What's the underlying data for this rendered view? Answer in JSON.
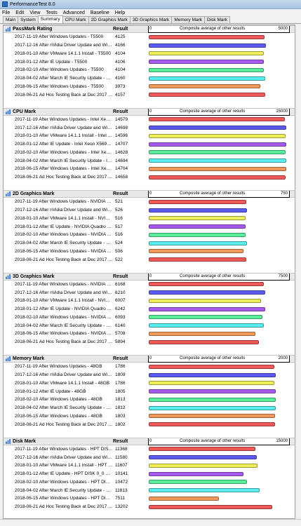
{
  "window": {
    "title": "PerformanceTest 8.0"
  },
  "menu": [
    "File",
    "Edit",
    "View",
    "Tests",
    "Advanced",
    "Baseline",
    "Help"
  ],
  "tabs": [
    {
      "label": "Main",
      "active": false
    },
    {
      "label": "System",
      "active": false
    },
    {
      "label": "Summary",
      "active": true
    },
    {
      "label": "CPU Mark",
      "active": false
    },
    {
      "label": "2D Graphics Mark",
      "active": false
    },
    {
      "label": "3D Graphics Mark",
      "active": false
    },
    {
      "label": "Memory Mark",
      "active": false
    },
    {
      "label": "Disk Mark",
      "active": false
    }
  ],
  "result_header": "Result",
  "composite_label": "Composite average of other results",
  "bar_colors": [
    "#ee5a5a",
    "#5a5aee",
    "#eeee5a",
    "#a65aee",
    "#5aee9a",
    "#5aeeee",
    "#ee9a5a",
    "#ee5a5a"
  ],
  "sections": [
    {
      "title": "PassMark Rating",
      "max": "5000",
      "max_value": 5000,
      "rows": [
        {
          "name": "2017-11-19 After Windows Updates - T5500",
          "value": "4125",
          "v": 4125
        },
        {
          "name": "2017-12-16 After nVidia Driver Update and Windo...",
          "value": "4166",
          "v": 4166
        },
        {
          "name": "2018-01-10 After VMware 14.1.1 Install - T5500",
          "value": "4104",
          "v": 4104
        },
        {
          "name": "2018-01-12 After IE Update - T5500",
          "value": "4106",
          "v": 4106
        },
        {
          "name": "2018-02-10 After Windows Updates - T5500",
          "value": "4104",
          "v": 4104
        },
        {
          "name": "2018-04-02  After March IE Security Update - T5500",
          "value": "4160",
          "v": 4160
        },
        {
          "name": "2018-06-15 After Windows Updates - T5500",
          "value": "3973",
          "v": 3973
        },
        {
          "name": "2018-06-21 Ad Hoc Testing Back at Dec 2017 Patc...",
          "value": "4157",
          "v": 4157
        }
      ]
    },
    {
      "title": "CPU Mark",
      "max": "15000",
      "max_value": 15000,
      "rows": [
        {
          "name": "2017-11-19 After Windows Updates - Intel Xeon X...",
          "value": "14579",
          "v": 14579
        },
        {
          "name": "2017-12-16 After nVidia Driver Update and Windo...",
          "value": "14698",
          "v": 14698
        },
        {
          "name": "2018-01-10 After VMware 14.1.1 Install - Intel Xe...",
          "value": "14596",
          "v": 14596
        },
        {
          "name": "2018-01-12 After IE Update - Intel Xeon X5690 @ 3...",
          "value": "14707",
          "v": 14707
        },
        {
          "name": "2018-02-10 After Windows Updates - Intel Xeon X...",
          "value": "14628",
          "v": 14628
        },
        {
          "name": "2018-04-02  After March IE Security Update - Intel ...",
          "value": "14694",
          "v": 14694
        },
        {
          "name": "2018-06-15 After Windows Updates - Intel Xeon X...",
          "value": "14704",
          "v": 14704
        },
        {
          "name": "2018-06-21 Ad Hoc Testing Back at Dec 2017 Patc...",
          "value": "14658",
          "v": 14658
        }
      ]
    },
    {
      "title": "2D Graphics Mark",
      "max": "750",
      "max_value": 750,
      "rows": [
        {
          "name": "2017-11-19 After Windows Updates - NVIDIA Qua...",
          "value": "521",
          "v": 521
        },
        {
          "name": "2017-12-16 After nVidia Driver Update and Windo...",
          "value": "526",
          "v": 526
        },
        {
          "name": "2018-01-10 After VMware 14.1.1 Install - NVIDIA Q...",
          "value": "516",
          "v": 516
        },
        {
          "name": "2018-01-12 After IE Update - NVIDIA Quadro P2000",
          "value": "517",
          "v": 517
        },
        {
          "name": "2018-02-10 After Windows Updates - NVIDIA Qua...",
          "value": "516",
          "v": 516
        },
        {
          "name": "2018-04-02  After March IE Security Update - NVIDI...",
          "value": "524",
          "v": 524
        },
        {
          "name": "2018-06-15 After Windows Updates - NVIDIA Qua...",
          "value": "506",
          "v": 506
        },
        {
          "name": "2018-06-21 Ad Hoc Testing Back at Dec 2017 Patc...",
          "value": "522",
          "v": 522
        }
      ]
    },
    {
      "title": "3D Graphics Mark",
      "max": "7500",
      "max_value": 7500,
      "rows": [
        {
          "name": "2017-11-19 After Windows Updates - NVIDIA Qua...",
          "value": "6168",
          "v": 6168
        },
        {
          "name": "2017-12-16 After nVidia Driver Update and Windo...",
          "value": "6210",
          "v": 6210
        },
        {
          "name": "2018-01-10 After VMware 14.1.1 Install - NVIDIA Q...",
          "value": "6007",
          "v": 6007
        },
        {
          "name": "2018-01-12 After IE Update - NVIDIA Quadro P2000",
          "value": "6242",
          "v": 6242
        },
        {
          "name": "2018-02-10 After Windows Updates - NVIDIA Qua...",
          "value": "6093",
          "v": 6093
        },
        {
          "name": "2018-04-02  After March IE Security Update - NVIDI...",
          "value": "6140",
          "v": 6140
        },
        {
          "name": "2018-06-15 After Windows Updates - NVIDIA Qua...",
          "value": "5708",
          "v": 5708
        },
        {
          "name": "2018-06-21 Ad Hoc Testing Back at Dec 2017 Patc...",
          "value": "5894",
          "v": 5894
        }
      ]
    },
    {
      "title": "Memory Mark",
      "max": "2000",
      "max_value": 2000,
      "rows": [
        {
          "name": "2017-11-19 After Windows Updates - 48GB",
          "value": "1786",
          "v": 1786
        },
        {
          "name": "2017-12-16 After nVidia Driver Update and Windo...",
          "value": "1809",
          "v": 1809
        },
        {
          "name": "2018-01-10 After VMware 14.1.1 Install - 48GB",
          "value": "1786",
          "v": 1786
        },
        {
          "name": "2018-01-12 After IE Update - 48GB",
          "value": "1805",
          "v": 1805
        },
        {
          "name": "2018-02-10 After Windows Updates - 48GB",
          "value": "1813",
          "v": 1813
        },
        {
          "name": "2018-04-02  After March IE Security Update - 48GB",
          "value": "1812",
          "v": 1812
        },
        {
          "name": "2018-06-15 After Windows Updates - 48GB",
          "value": "1803",
          "v": 1803
        },
        {
          "name": "2018-06-21 Ad Hoc Testing Back at Dec 2017 Patc...",
          "value": "1802",
          "v": 1802
        }
      ]
    },
    {
      "title": "Disk Mark",
      "max": "15000",
      "max_value": 15000,
      "rows": [
        {
          "name": "2017-11-19 After Windows Updates - HPT DISK 0_...",
          "value": "11368",
          "v": 11368
        },
        {
          "name": "2017-12-16 After nVidia Driver Update and Windo...",
          "value": "11580",
          "v": 11580
        },
        {
          "name": "2018-01-10 After VMware 14.1.1 Install - HPT DISK ...",
          "value": "11607",
          "v": 11607
        },
        {
          "name": "2018-01-12 After IE Update - HPT DISK 0_0 SCSI Di...",
          "value": "10141",
          "v": 10141
        },
        {
          "name": "2018-02-10 After Windows Updates - HPT DISK 0_...",
          "value": "10472",
          "v": 10472
        },
        {
          "name": "2018-04-02  After March IE Security Update - HPT ...",
          "value": "11813",
          "v": 11813
        },
        {
          "name": "2018-06-15 After Windows Updates - HPT DISK 0_...",
          "value": "7511",
          "v": 7511
        },
        {
          "name": "2018-06-21 Ad Hoc Testing Back at Dec 2017 Patc...",
          "value": "13202",
          "v": 13202
        }
      ]
    }
  ]
}
